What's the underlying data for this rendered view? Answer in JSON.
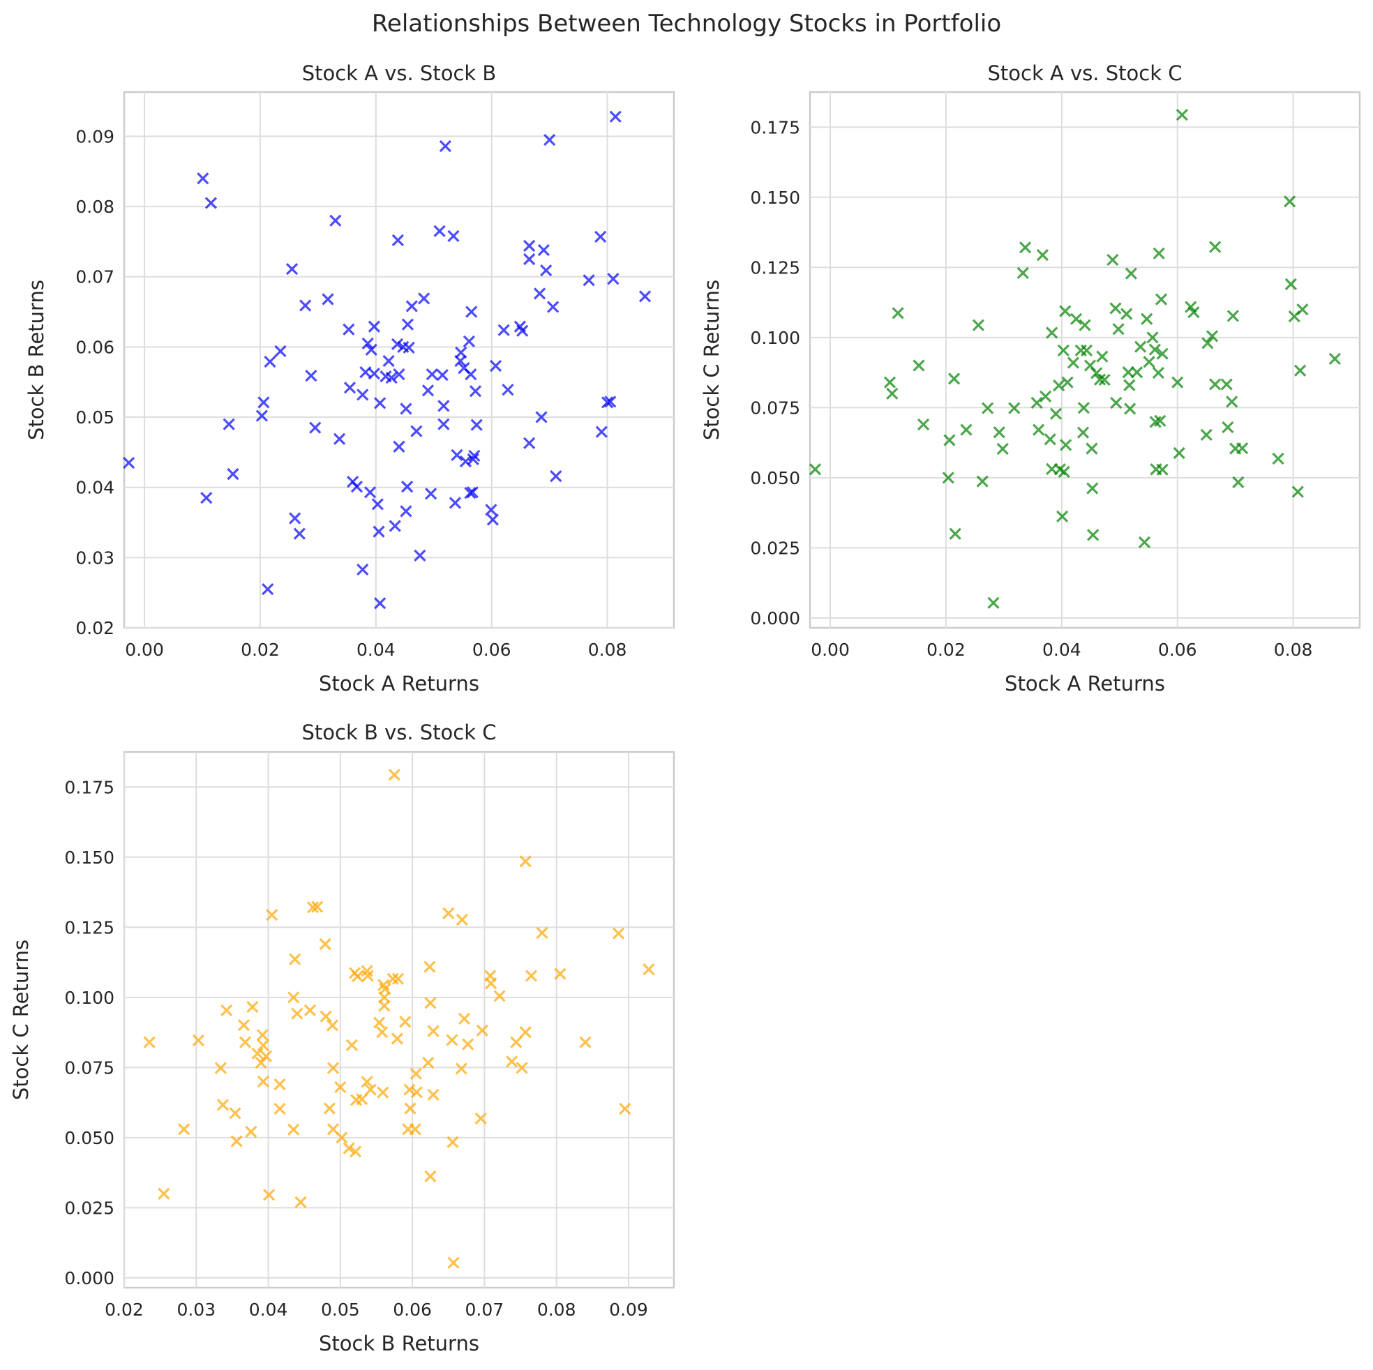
{
  "figure": {
    "title": "Relationships Between Technology Stocks in Portfolio"
  },
  "chart_data": [
    {
      "type": "scatter",
      "title": "Stock A vs. Stock B",
      "xlabel": "Stock A Returns",
      "ylabel": "Stock B Returns",
      "marker": "x",
      "color": "#0000ff",
      "grid": true,
      "xlim": [
        -0.0035,
        0.0915
      ],
      "ylim": [
        0.02,
        0.0963
      ],
      "xticks": [
        0.0,
        0.02,
        0.04,
        0.06,
        0.08
      ],
      "xtick_labels": [
        "0.00",
        "0.02",
        "0.04",
        "0.06",
        "0.08"
      ],
      "yticks": [
        0.02,
        0.03,
        0.04,
        0.05,
        0.06,
        0.07,
        0.08,
        0.09
      ],
      "ytick_labels": [
        "0.02",
        "0.03",
        "0.04",
        "0.05",
        "0.06",
        "0.07",
        "0.08",
        "0.09"
      ],
      "points": [
        [
          -0.0027,
          0.0435
        ],
        [
          0.0101,
          0.084
        ],
        [
          0.0115,
          0.0805
        ],
        [
          0.0107,
          0.0385
        ],
        [
          0.0146,
          0.049
        ],
        [
          0.0153,
          0.0419
        ],
        [
          0.0203,
          0.0502
        ],
        [
          0.0206,
          0.0521
        ],
        [
          0.0213,
          0.0255
        ],
        [
          0.0217,
          0.0579
        ],
        [
          0.0235,
          0.0594
        ],
        [
          0.0255,
          0.0711
        ],
        [
          0.026,
          0.0356
        ],
        [
          0.0268,
          0.0334
        ],
        [
          0.0278,
          0.0659
        ],
        [
          0.0288,
          0.0559
        ],
        [
          0.0295,
          0.0485
        ],
        [
          0.0317,
          0.0668
        ],
        [
          0.033,
          0.078
        ],
        [
          0.0337,
          0.0469
        ],
        [
          0.0353,
          0.0625
        ],
        [
          0.0355,
          0.0542
        ],
        [
          0.036,
          0.0408
        ],
        [
          0.0367,
          0.0401
        ],
        [
          0.0377,
          0.0532
        ],
        [
          0.0377,
          0.0283
        ],
        [
          0.0382,
          0.0564
        ],
        [
          0.0386,
          0.0605
        ],
        [
          0.039,
          0.0393
        ],
        [
          0.0392,
          0.0596
        ],
        [
          0.0397,
          0.0629
        ],
        [
          0.0397,
          0.0562
        ],
        [
          0.0403,
          0.0376
        ],
        [
          0.0405,
          0.0337
        ],
        [
          0.0407,
          0.052
        ],
        [
          0.0407,
          0.0235
        ],
        [
          0.0417,
          0.0558
        ],
        [
          0.0422,
          0.058
        ],
        [
          0.0427,
          0.0556
        ],
        [
          0.0433,
          0.0345
        ],
        [
          0.0437,
          0.0604
        ],
        [
          0.0438,
          0.0752
        ],
        [
          0.044,
          0.0561
        ],
        [
          0.044,
          0.0458
        ],
        [
          0.0447,
          0.06
        ],
        [
          0.0452,
          0.0512
        ],
        [
          0.0452,
          0.0366
        ],
        [
          0.0454,
          0.0401
        ],
        [
          0.0455,
          0.0632
        ],
        [
          0.0457,
          0.0599
        ],
        [
          0.0462,
          0.0658
        ],
        [
          0.047,
          0.048
        ],
        [
          0.0476,
          0.0303
        ],
        [
          0.0483,
          0.0669
        ],
        [
          0.049,
          0.0538
        ],
        [
          0.0495,
          0.0391
        ],
        [
          0.0497,
          0.0561
        ],
        [
          0.051,
          0.0765
        ],
        [
          0.0515,
          0.056
        ],
        [
          0.0517,
          0.0516
        ],
        [
          0.0517,
          0.049
        ],
        [
          0.052,
          0.0886
        ],
        [
          0.0534,
          0.0758
        ],
        [
          0.0537,
          0.0378
        ],
        [
          0.054,
          0.0446
        ],
        [
          0.0546,
          0.058
        ],
        [
          0.0547,
          0.0592
        ],
        [
          0.0552,
          0.057
        ],
        [
          0.0555,
          0.0437
        ],
        [
          0.0561,
          0.0608
        ],
        [
          0.0563,
          0.0392
        ],
        [
          0.0564,
          0.0561
        ],
        [
          0.0565,
          0.065
        ],
        [
          0.0567,
          0.0393
        ],
        [
          0.0568,
          0.044
        ],
        [
          0.057,
          0.0445
        ],
        [
          0.0572,
          0.0537
        ],
        [
          0.0574,
          0.0489
        ],
        [
          0.0599,
          0.0368
        ],
        [
          0.0602,
          0.0354
        ],
        [
          0.0607,
          0.0573
        ],
        [
          0.0621,
          0.0624
        ],
        [
          0.0628,
          0.0539
        ],
        [
          0.0649,
          0.0629
        ],
        [
          0.0653,
          0.0623
        ],
        [
          0.0665,
          0.0744
        ],
        [
          0.0665,
          0.0725
        ],
        [
          0.0665,
          0.0463
        ],
        [
          0.0683,
          0.0676
        ],
        [
          0.0686,
          0.05
        ],
        [
          0.069,
          0.0738
        ],
        [
          0.0694,
          0.0709
        ],
        [
          0.07,
          0.0895
        ],
        [
          0.0706,
          0.0657
        ],
        [
          0.0711,
          0.0416
        ],
        [
          0.0768,
          0.0695
        ],
        [
          0.0788,
          0.0757
        ],
        [
          0.079,
          0.0479
        ],
        [
          0.08,
          0.0521
        ],
        [
          0.0805,
          0.0522
        ],
        [
          0.081,
          0.0697
        ],
        [
          0.0814,
          0.0928
        ],
        [
          0.0865,
          0.0672
        ]
      ]
    },
    {
      "type": "scatter",
      "title": "Stock A vs. Stock C",
      "xlabel": "Stock A Returns",
      "ylabel": "Stock C Returns",
      "marker": "x",
      "color": "#008000",
      "grid": true,
      "xlim": [
        -0.0035,
        0.0915
      ],
      "ylim": [
        -0.0035,
        0.1875
      ],
      "xticks": [
        0.0,
        0.02,
        0.04,
        0.06,
        0.08
      ],
      "xtick_labels": [
        "0.00",
        "0.02",
        "0.04",
        "0.06",
        "0.08"
      ],
      "yticks": [
        0.0,
        0.025,
        0.05,
        0.075,
        0.1,
        0.125,
        0.15,
        0.175
      ],
      "ytick_labels": [
        "0.000",
        "0.025",
        "0.050",
        "0.075",
        "0.100",
        "0.125",
        "0.150",
        "0.175"
      ],
      "points": [
        [
          -0.0026,
          0.053
        ],
        [
          0.0103,
          0.084
        ],
        [
          0.0107,
          0.08
        ],
        [
          0.0117,
          0.1087
        ],
        [
          0.0153,
          0.09
        ],
        [
          0.0161,
          0.069
        ],
        [
          0.0204,
          0.05
        ],
        [
          0.0206,
          0.0634
        ],
        [
          0.0214,
          0.0853
        ],
        [
          0.0216,
          0.03
        ],
        [
          0.0235,
          0.0671
        ],
        [
          0.0256,
          0.1044
        ],
        [
          0.0263,
          0.0487
        ],
        [
          0.0272,
          0.0748
        ],
        [
          0.0282,
          0.0054
        ],
        [
          0.0292,
          0.0662
        ],
        [
          0.0298,
          0.0603
        ],
        [
          0.0318,
          0.0748
        ],
        [
          0.0333,
          0.123
        ],
        [
          0.0337,
          0.1321
        ],
        [
          0.0357,
          0.0767
        ],
        [
          0.036,
          0.0671
        ],
        [
          0.0367,
          0.1294
        ],
        [
          0.0372,
          0.079
        ],
        [
          0.038,
          0.0637
        ],
        [
          0.0383,
          0.1017
        ],
        [
          0.0383,
          0.0531
        ],
        [
          0.039,
          0.0728
        ],
        [
          0.0395,
          0.0829
        ],
        [
          0.0397,
          0.053
        ],
        [
          0.0401,
          0.0362
        ],
        [
          0.0403,
          0.0954
        ],
        [
          0.0404,
          0.0521
        ],
        [
          0.0406,
          0.1094
        ],
        [
          0.0407,
          0.0617
        ],
        [
          0.041,
          0.084
        ],
        [
          0.042,
          0.091
        ],
        [
          0.0425,
          0.1066
        ],
        [
          0.0433,
          0.0954
        ],
        [
          0.0437,
          0.0661
        ],
        [
          0.0438,
          0.0749
        ],
        [
          0.044,
          0.1044
        ],
        [
          0.0443,
          0.0954
        ],
        [
          0.0449,
          0.09
        ],
        [
          0.0452,
          0.0604
        ],
        [
          0.0453,
          0.0462
        ],
        [
          0.0454,
          0.0296
        ],
        [
          0.046,
          0.0873
        ],
        [
          0.0466,
          0.085
        ],
        [
          0.047,
          0.0932
        ],
        [
          0.0474,
          0.0849
        ],
        [
          0.0488,
          0.1277
        ],
        [
          0.0493,
          0.1104
        ],
        [
          0.0494,
          0.0767
        ],
        [
          0.0498,
          0.103
        ],
        [
          0.0512,
          0.1084
        ],
        [
          0.0515,
          0.0876
        ],
        [
          0.0517,
          0.083
        ],
        [
          0.0518,
          0.0746
        ],
        [
          0.052,
          0.1228
        ],
        [
          0.053,
          0.0876
        ],
        [
          0.0536,
          0.0967
        ],
        [
          0.0543,
          0.027
        ],
        [
          0.0547,
          0.1066
        ],
        [
          0.0551,
          0.0913
        ],
        [
          0.0557,
          0.1
        ],
        [
          0.0561,
          0.0957
        ],
        [
          0.0562,
          0.0699
        ],
        [
          0.0563,
          0.053
        ],
        [
          0.0567,
          0.0874
        ],
        [
          0.0568,
          0.13
        ],
        [
          0.057,
          0.0703
        ],
        [
          0.0572,
          0.1136
        ],
        [
          0.0574,
          0.0942
        ],
        [
          0.0574,
          0.0529
        ],
        [
          0.06,
          0.084
        ],
        [
          0.0603,
          0.0588
        ],
        [
          0.0608,
          0.1794
        ],
        [
          0.0623,
          0.1109
        ],
        [
          0.0628,
          0.109
        ],
        [
          0.065,
          0.0653
        ],
        [
          0.0652,
          0.098
        ],
        [
          0.066,
          0.1005
        ],
        [
          0.0665,
          0.1323
        ],
        [
          0.0665,
          0.0833
        ],
        [
          0.0685,
          0.0833
        ],
        [
          0.0687,
          0.068
        ],
        [
          0.0694,
          0.0771
        ],
        [
          0.0696,
          0.1077
        ],
        [
          0.07,
          0.0604
        ],
        [
          0.0705,
          0.0484
        ],
        [
          0.0712,
          0.0605
        ],
        [
          0.0774,
          0.0568
        ],
        [
          0.0794,
          0.1485
        ],
        [
          0.0796,
          0.119
        ],
        [
          0.0802,
          0.1075
        ],
        [
          0.0808,
          0.045
        ],
        [
          0.0812,
          0.0882
        ],
        [
          0.0816,
          0.11
        ],
        [
          0.0872,
          0.0924
        ]
      ]
    },
    {
      "type": "scatter",
      "title": "Stock B vs. Stock C",
      "xlabel": "Stock B Returns",
      "ylabel": "Stock C Returns",
      "marker": "x",
      "color": "#ffa500",
      "grid": true,
      "xlim": [
        0.02,
        0.0963
      ],
      "ylim": [
        -0.0035,
        0.1875
      ],
      "xticks": [
        0.02,
        0.03,
        0.04,
        0.05,
        0.06,
        0.07,
        0.08,
        0.09
      ],
      "xtick_labels": [
        "0.02",
        "0.03",
        "0.04",
        "0.05",
        "0.06",
        "0.07",
        "0.08",
        "0.09"
      ],
      "yticks": [
        0.0,
        0.025,
        0.05,
        0.075,
        0.1,
        0.125,
        0.15,
        0.175
      ],
      "ytick_labels": [
        "0.000",
        "0.025",
        "0.050",
        "0.075",
        "0.100",
        "0.125",
        "0.150",
        "0.175"
      ],
      "points": [
        [
          0.0235,
          0.084
        ],
        [
          0.0255,
          0.03
        ],
        [
          0.0283,
          0.053
        ],
        [
          0.0303,
          0.0847
        ],
        [
          0.0334,
          0.0748
        ],
        [
          0.0337,
          0.0617
        ],
        [
          0.0342,
          0.0954
        ],
        [
          0.0354,
          0.0587
        ],
        [
          0.0356,
          0.0487
        ],
        [
          0.0366,
          0.0901
        ],
        [
          0.0368,
          0.084
        ],
        [
          0.0376,
          0.0521
        ],
        [
          0.0378,
          0.0966
        ],
        [
          0.0385,
          0.08
        ],
        [
          0.039,
          0.0767
        ],
        [
          0.0392,
          0.0866
        ],
        [
          0.0393,
          0.0829
        ],
        [
          0.0393,
          0.07
        ],
        [
          0.0397,
          0.079
        ],
        [
          0.0401,
          0.0296
        ],
        [
          0.0405,
          0.1294
        ],
        [
          0.0416,
          0.069
        ],
        [
          0.0416,
          0.0603
        ],
        [
          0.0435,
          0.0529
        ],
        [
          0.0435,
          0.1
        ],
        [
          0.0437,
          0.1136
        ],
        [
          0.044,
          0.0942
        ],
        [
          0.0445,
          0.027
        ],
        [
          0.0458,
          0.0954
        ],
        [
          0.0462,
          0.1321
        ],
        [
          0.0468,
          0.1323
        ],
        [
          0.0479,
          0.119
        ],
        [
          0.048,
          0.0932
        ],
        [
          0.0485,
          0.0604
        ],
        [
          0.0489,
          0.09
        ],
        [
          0.049,
          0.0748
        ],
        [
          0.049,
          0.053
        ],
        [
          0.05,
          0.068
        ],
        [
          0.0502,
          0.05
        ],
        [
          0.0512,
          0.0462
        ],
        [
          0.0516,
          0.083
        ],
        [
          0.052,
          0.1087
        ],
        [
          0.0521,
          0.045
        ],
        [
          0.0522,
          0.0634
        ],
        [
          0.0524,
          0.1075
        ],
        [
          0.053,
          0.0637
        ],
        [
          0.0537,
          0.1094
        ],
        [
          0.0537,
          0.0699
        ],
        [
          0.0538,
          0.1077
        ],
        [
          0.0542,
          0.0671
        ],
        [
          0.0554,
          0.091
        ],
        [
          0.0558,
          0.0876
        ],
        [
          0.0559,
          0.0661
        ],
        [
          0.056,
          0.1044
        ],
        [
          0.0561,
          0.1
        ],
        [
          0.0561,
          0.097
        ],
        [
          0.0562,
          0.103
        ],
        [
          0.0573,
          0.1066
        ],
        [
          0.0575,
          0.1794
        ],
        [
          0.0579,
          0.0853
        ],
        [
          0.058,
          0.1066
        ],
        [
          0.059,
          0.0913
        ],
        [
          0.0594,
          0.053
        ],
        [
          0.0596,
          0.0671
        ],
        [
          0.0597,
          0.0604
        ],
        [
          0.0604,
          0.053
        ],
        [
          0.0605,
          0.0728
        ],
        [
          0.0606,
          0.0662
        ],
        [
          0.0622,
          0.0767
        ],
        [
          0.0624,
          0.1109
        ],
        [
          0.0625,
          0.098
        ],
        [
          0.0625,
          0.0362
        ],
        [
          0.0629,
          0.0653
        ],
        [
          0.0629,
          0.088
        ],
        [
          0.065,
          0.13
        ],
        [
          0.0655,
          0.0848
        ],
        [
          0.0656,
          0.0484
        ],
        [
          0.0657,
          0.0054
        ],
        [
          0.0668,
          0.0746
        ],
        [
          0.0669,
          0.1277
        ],
        [
          0.0672,
          0.0924
        ],
        [
          0.0677,
          0.0833
        ],
        [
          0.0695,
          0.0568
        ],
        [
          0.0697,
          0.0882
        ],
        [
          0.0708,
          0.1077
        ],
        [
          0.0709,
          0.105
        ],
        [
          0.0721,
          0.1005
        ],
        [
          0.0738,
          0.0771
        ],
        [
          0.0744,
          0.084
        ],
        [
          0.0752,
          0.0749
        ],
        [
          0.0757,
          0.1485
        ],
        [
          0.0757,
          0.0876
        ],
        [
          0.0765,
          0.1077
        ],
        [
          0.078,
          0.123
        ],
        [
          0.0805,
          0.1084
        ],
        [
          0.084,
          0.084
        ],
        [
          0.0886,
          0.1228
        ],
        [
          0.0895,
          0.0603
        ],
        [
          0.0928,
          0.11
        ]
      ]
    }
  ]
}
